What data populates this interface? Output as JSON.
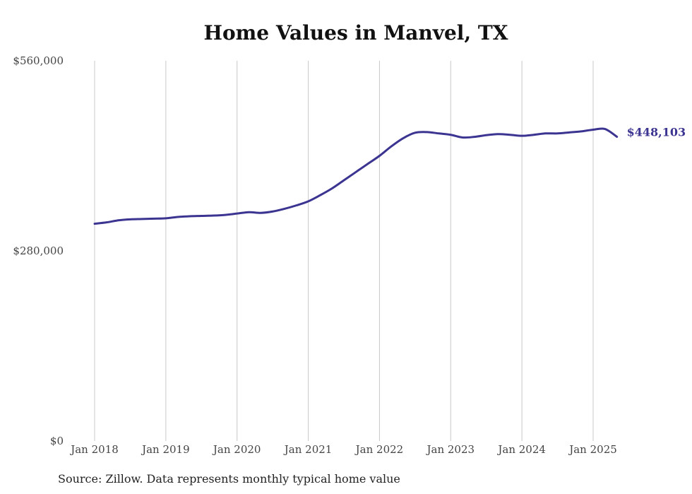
{
  "chart_data": {
    "type": "line",
    "title": "Home Values in Manvel, TX",
    "xlabel": "",
    "ylabel": "",
    "ylim": [
      0,
      560000
    ],
    "y_ticks": [
      {
        "value": 0,
        "label": "$0"
      },
      {
        "value": 280000,
        "label": "$280,000"
      },
      {
        "value": 560000,
        "label": "$560,000"
      }
    ],
    "x_ticks": [
      {
        "value": "2018-01",
        "label": "Jan 2018"
      },
      {
        "value": "2019-01",
        "label": "Jan 2019"
      },
      {
        "value": "2020-01",
        "label": "Jan 2020"
      },
      {
        "value": "2021-01",
        "label": "Jan 2021"
      },
      {
        "value": "2022-01",
        "label": "Jan 2022"
      },
      {
        "value": "2023-01",
        "label": "Jan 2023"
      },
      {
        "value": "2024-01",
        "label": "Jan 2024"
      },
      {
        "value": "2025-01",
        "label": "Jan 2025"
      }
    ],
    "x_range": [
      "2018-01",
      "2025-05"
    ],
    "grid": "vertical",
    "line_color": "#3b3491",
    "end_label": "$448,103",
    "series": [
      {
        "x": [
          "2018-01",
          "2018-03",
          "2018-05",
          "2018-07",
          "2018-09",
          "2018-11",
          "2019-01",
          "2019-03",
          "2019-05",
          "2019-07",
          "2019-09",
          "2019-11",
          "2020-01",
          "2020-03",
          "2020-05",
          "2020-07",
          "2020-09",
          "2020-11",
          "2021-01",
          "2021-03",
          "2021-05",
          "2021-07",
          "2021-09",
          "2021-11",
          "2022-01",
          "2022-03",
          "2022-05",
          "2022-07",
          "2022-09",
          "2022-11",
          "2023-01",
          "2023-03",
          "2023-05",
          "2023-07",
          "2023-09",
          "2023-11",
          "2024-01",
          "2024-03",
          "2024-05",
          "2024-07",
          "2024-09",
          "2024-11",
          "2025-01",
          "2025-03",
          "2025-05"
        ],
        "values": [
          320000,
          322000,
          325000,
          326500,
          327000,
          327500,
          328000,
          330000,
          331000,
          331500,
          332000,
          333000,
          335000,
          337000,
          336000,
          338000,
          342000,
          347000,
          353000,
          362000,
          372000,
          384000,
          396000,
          408000,
          420000,
          434000,
          446000,
          454000,
          455000,
          453000,
          451000,
          447000,
          448000,
          450500,
          452000,
          451000,
          449500,
          451000,
          453000,
          453000,
          454500,
          456000,
          458500,
          459500,
          448103
        ]
      }
    ]
  },
  "source": "Source: Zillow. Data represents monthly typical home value"
}
